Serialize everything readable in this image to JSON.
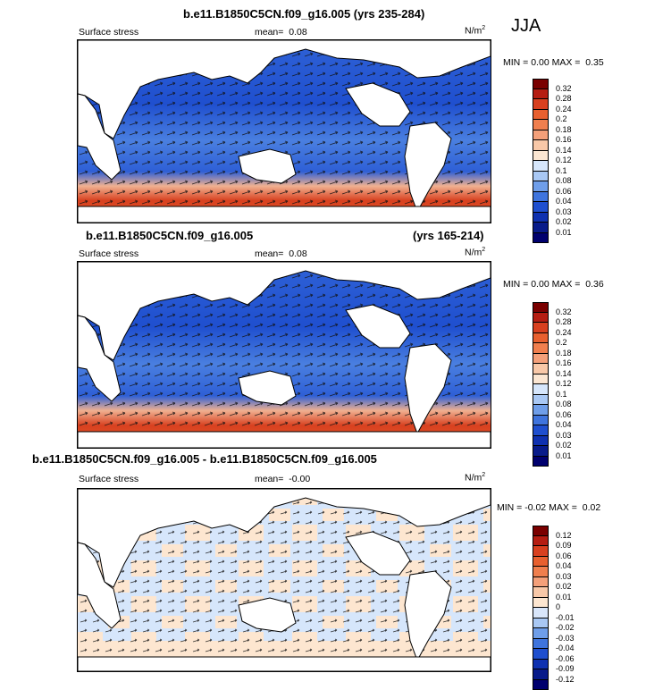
{
  "season": "JJA",
  "panels": [
    {
      "title": "b.e11.B1850C5CN.f09_g16.005 (yrs 235-284)",
      "title_right": "",
      "variable": "Surface stress",
      "mean_label": "mean=",
      "mean_value": "0.08",
      "units": "N/m",
      "units_sup": "2",
      "min_label": "MIN =",
      "min_value": "0.00",
      "max_label": "MAX =",
      "max_value": "0.35",
      "legend_labels": [
        "0.32",
        "0.28",
        "0.24",
        "0.2",
        "0.18",
        "0.16",
        "0.14",
        "0.12",
        "0.1",
        "0.08",
        "0.06",
        "0.04",
        "0.03",
        "0.02",
        "0.01"
      ]
    },
    {
      "title": "b.e11.B1850C5CN.f09_g16.005",
      "title_right": "(yrs 165-214)",
      "variable": "Surface stress",
      "mean_label": "mean=",
      "mean_value": "0.08",
      "units": "N/m",
      "units_sup": "2",
      "min_label": "MIN =",
      "min_value": "0.00",
      "max_label": "MAX =",
      "max_value": "0.36",
      "legend_labels": [
        "0.32",
        "0.28",
        "0.24",
        "0.2",
        "0.18",
        "0.16",
        "0.14",
        "0.12",
        "0.1",
        "0.08",
        "0.06",
        "0.04",
        "0.03",
        "0.02",
        "0.01"
      ]
    },
    {
      "title": "b.e11.B1850C5CN.f09_g16.005 - b.e11.B1850C5CN.f09_g16.005",
      "title_right": "",
      "variable": "Surface stress",
      "mean_label": "mean=",
      "mean_value": "-0.00",
      "units": "N/m",
      "units_sup": "2",
      "min_label": "MIN =",
      "min_value": "-0.02",
      "max_label": "MAX =",
      "max_value": "0.02",
      "legend_labels": [
        "0.12",
        "0.09",
        "0.06",
        "0.04",
        "0.03",
        "0.02",
        "0.01",
        "0",
        "-0.01",
        "-0.02",
        "-0.03",
        "-0.04",
        "-0.06",
        "-0.09",
        "-0.12"
      ]
    }
  ],
  "colors": {
    "abs_scale": [
      "#7a0000",
      "#b51d12",
      "#d8401f",
      "#e8602f",
      "#f07f4e",
      "#f4a07a",
      "#f8c8a8",
      "#fbe6d2",
      "#d6e6fb",
      "#a9c8f4",
      "#6f9ee9",
      "#3f74dd",
      "#1f4fcf",
      "#0f31b0",
      "#081b8a",
      "#00006e"
    ],
    "diff_scale": [
      "#7a0000",
      "#b51d12",
      "#d8401f",
      "#e8602f",
      "#f07f4e",
      "#f4a07a",
      "#f8c8a8",
      "#fde6d0",
      "#d9e6fa",
      "#a9c8f4",
      "#6f9ee9",
      "#3f74dd",
      "#1f4fcf",
      "#0f31b0",
      "#081b8a",
      "#00006e"
    ]
  }
}
